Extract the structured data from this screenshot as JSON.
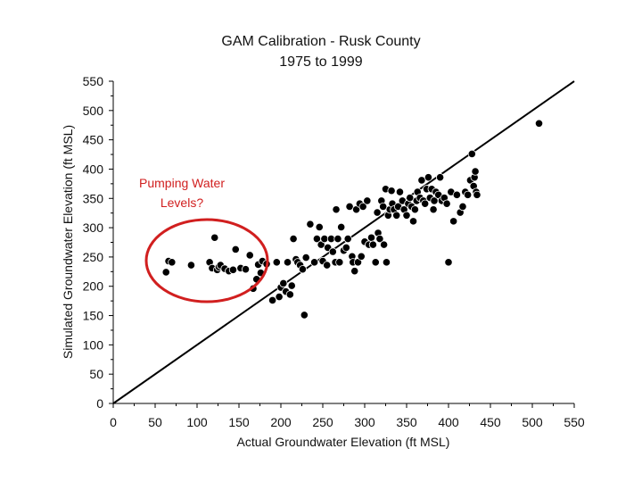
{
  "chart_data": {
    "type": "scatter",
    "title": "GAM Calibration - Rusk County",
    "subtitle": "1975 to 1999",
    "xlabel": "Actual Groundwater Elevation (ft MSL)",
    "ylabel": "Simulated Groundwater Elevation (ft MSL)",
    "xlim": [
      0,
      550
    ],
    "ylim": [
      0,
      550
    ],
    "x_ticks": [
      "0",
      "50",
      "100",
      "150",
      "200",
      "250",
      "300",
      "350",
      "400",
      "450",
      "500",
      "550"
    ],
    "y_ticks": [
      "0",
      "50",
      "100",
      "150",
      "200",
      "250",
      "300",
      "350",
      "400",
      "450",
      "500",
      "550"
    ],
    "reference_line": "1:1",
    "annotation": {
      "lines": [
        "Pumping Water",
        "Levels?"
      ]
    },
    "colors": {
      "points": "#000000",
      "annotation": "#d11f1f",
      "axis": "#000000"
    },
    "points": [
      [
        63,
        224
      ],
      [
        66,
        243
      ],
      [
        70,
        241
      ],
      [
        93,
        236
      ],
      [
        115,
        241
      ],
      [
        118,
        231
      ],
      [
        121,
        283
      ],
      [
        124,
        228
      ],
      [
        126,
        233
      ],
      [
        128,
        236
      ],
      [
        133,
        230
      ],
      [
        138,
        226
      ],
      [
        143,
        228
      ],
      [
        146,
        263
      ],
      [
        152,
        231
      ],
      [
        158,
        229
      ],
      [
        163,
        253
      ],
      [
        167,
        196
      ],
      [
        171,
        212
      ],
      [
        173,
        237
      ],
      [
        176,
        223
      ],
      [
        178,
        243
      ],
      [
        183,
        238
      ],
      [
        190,
        176
      ],
      [
        195,
        241
      ],
      [
        198,
        182
      ],
      [
        200,
        198
      ],
      [
        203,
        205
      ],
      [
        206,
        191
      ],
      [
        208,
        241
      ],
      [
        211,
        186
      ],
      [
        213,
        201
      ],
      [
        215,
        281
      ],
      [
        218,
        246
      ],
      [
        220,
        241
      ],
      [
        223,
        236
      ],
      [
        226,
        229
      ],
      [
        228,
        151
      ],
      [
        230,
        249
      ],
      [
        235,
        306
      ],
      [
        240,
        241
      ],
      [
        243,
        281
      ],
      [
        246,
        301
      ],
      [
        248,
        271
      ],
      [
        250,
        243
      ],
      [
        252,
        281
      ],
      [
        255,
        236
      ],
      [
        256,
        266
      ],
      [
        260,
        281
      ],
      [
        262,
        259
      ],
      [
        265,
        241
      ],
      [
        266,
        331
      ],
      [
        268,
        281
      ],
      [
        270,
        241
      ],
      [
        272,
        301
      ],
      [
        275,
        261
      ],
      [
        278,
        266
      ],
      [
        280,
        281
      ],
      [
        282,
        336
      ],
      [
        285,
        251
      ],
      [
        286,
        241
      ],
      [
        288,
        226
      ],
      [
        290,
        331
      ],
      [
        292,
        241
      ],
      [
        294,
        341
      ],
      [
        296,
        251
      ],
      [
        298,
        336
      ],
      [
        300,
        276
      ],
      [
        303,
        346
      ],
      [
        305,
        271
      ],
      [
        308,
        283
      ],
      [
        310,
        271
      ],
      [
        313,
        241
      ],
      [
        315,
        326
      ],
      [
        316,
        291
      ],
      [
        318,
        281
      ],
      [
        320,
        346
      ],
      [
        322,
        336
      ],
      [
        323,
        271
      ],
      [
        325,
        366
      ],
      [
        326,
        241
      ],
      [
        328,
        321
      ],
      [
        330,
        331
      ],
      [
        332,
        363
      ],
      [
        333,
        341
      ],
      [
        335,
        331
      ],
      [
        338,
        321
      ],
      [
        340,
        336
      ],
      [
        342,
        361
      ],
      [
        345,
        346
      ],
      [
        347,
        331
      ],
      [
        350,
        321
      ],
      [
        352,
        341
      ],
      [
        354,
        351
      ],
      [
        356,
        336
      ],
      [
        358,
        311
      ],
      [
        360,
        331
      ],
      [
        362,
        346
      ],
      [
        363,
        361
      ],
      [
        366,
        351
      ],
      [
        368,
        381
      ],
      [
        370,
        346
      ],
      [
        372,
        341
      ],
      [
        374,
        366
      ],
      [
        376,
        386
      ],
      [
        378,
        351
      ],
      [
        380,
        366
      ],
      [
        382,
        331
      ],
      [
        383,
        346
      ],
      [
        385,
        361
      ],
      [
        388,
        356
      ],
      [
        390,
        386
      ],
      [
        392,
        346
      ],
      [
        395,
        351
      ],
      [
        398,
        341
      ],
      [
        400,
        241
      ],
      [
        403,
        361
      ],
      [
        406,
        311
      ],
      [
        410,
        356
      ],
      [
        414,
        326
      ],
      [
        417,
        336
      ],
      [
        420,
        361
      ],
      [
        423,
        356
      ],
      [
        426,
        381
      ],
      [
        428,
        426
      ],
      [
        430,
        371
      ],
      [
        431,
        386
      ],
      [
        432,
        396
      ],
      [
        433,
        361
      ],
      [
        434,
        356
      ],
      [
        508,
        478
      ]
    ]
  }
}
